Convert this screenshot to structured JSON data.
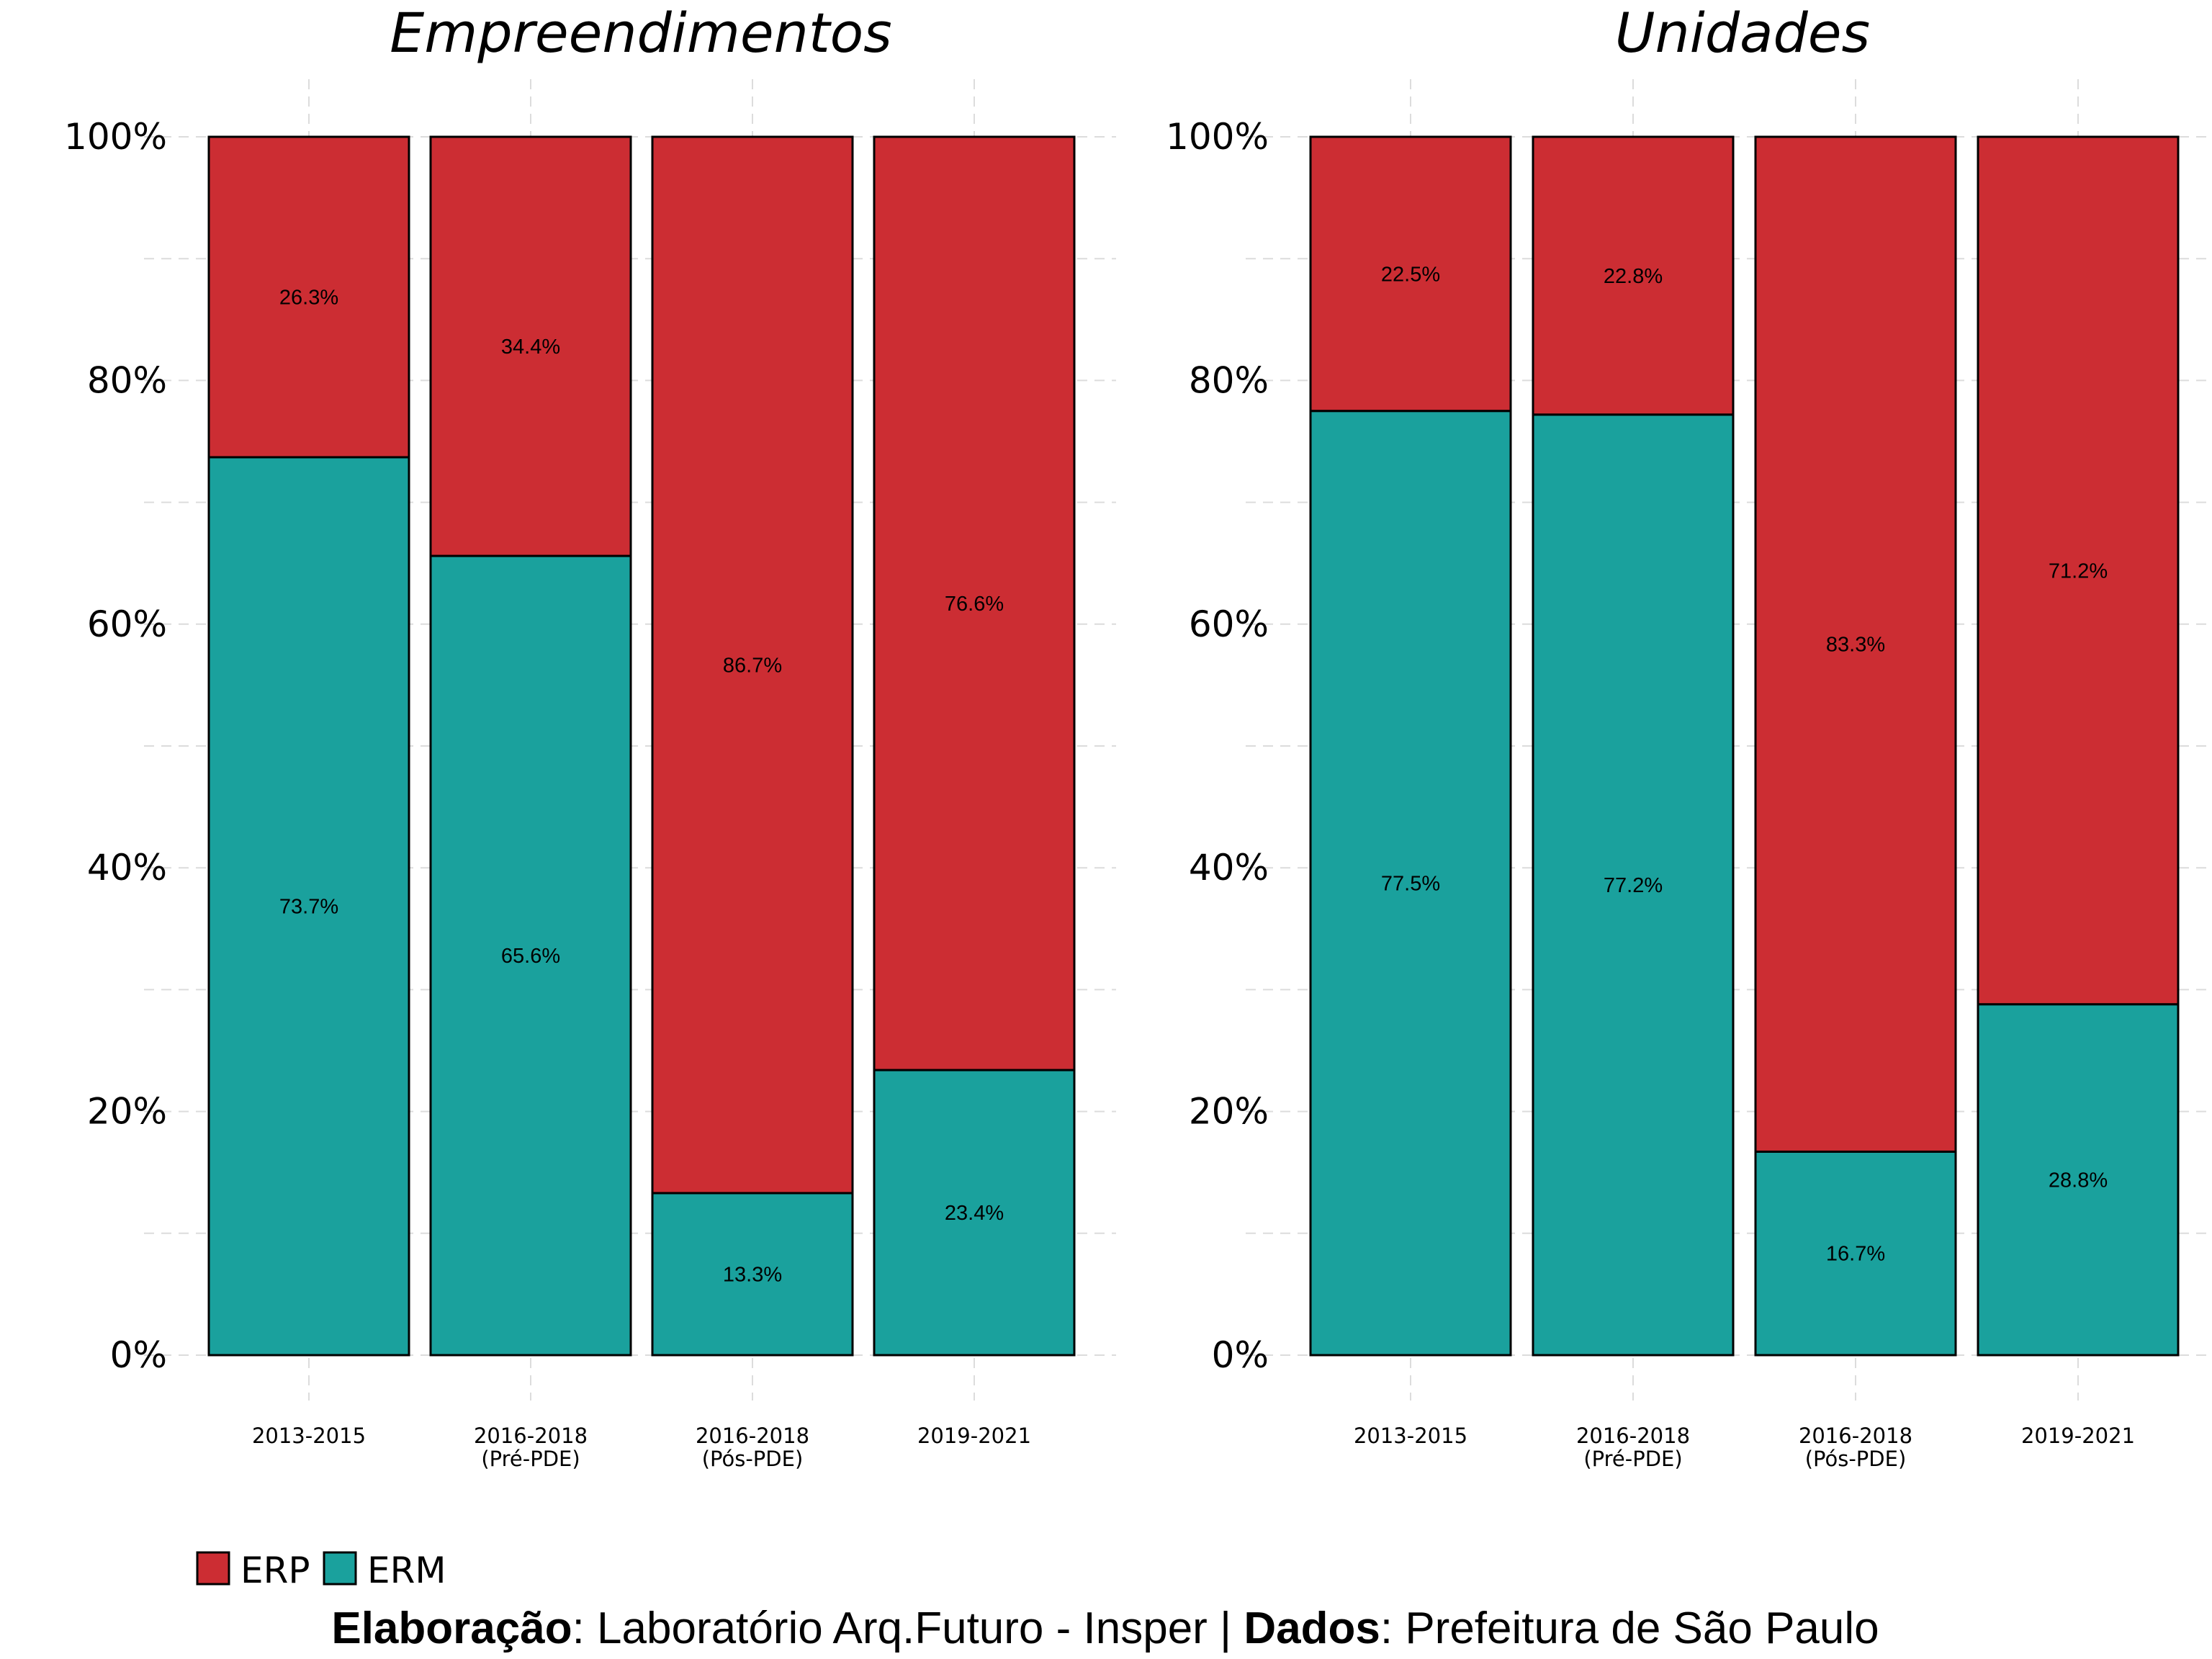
{
  "chart_data": [
    {
      "type": "bar",
      "stacked": true,
      "title": "Empreendimentos",
      "categories": [
        "2013-2015",
        "2016-2018\n(Pré-PDE)",
        "2016-2018\n(Pós-PDE)",
        "2019-2021"
      ],
      "series": [
        {
          "name": "ERM",
          "values": [
            73.7,
            65.6,
            13.3,
            23.4
          ],
          "labels": [
            "73.7%",
            "65.6%",
            "13.3%",
            "23.4%"
          ]
        },
        {
          "name": "ERP",
          "values": [
            26.3,
            34.4,
            86.7,
            76.6
          ],
          "labels": [
            "26.3%",
            "34.4%",
            "86.7%",
            "76.6%"
          ]
        }
      ],
      "yticks": [
        "0%",
        "20%",
        "40%",
        "60%",
        "80%",
        "100%"
      ],
      "ylim": [
        0,
        100
      ],
      "grid": true
    },
    {
      "type": "bar",
      "stacked": true,
      "title": "Unidades",
      "categories": [
        "2013-2015",
        "2016-2018\n(Pré-PDE)",
        "2016-2018\n(Pós-PDE)",
        "2019-2021"
      ],
      "series": [
        {
          "name": "ERM",
          "values": [
            77.5,
            77.2,
            16.7,
            28.8
          ],
          "labels": [
            "77.5%",
            "77.2%",
            "16.7%",
            "28.8%"
          ]
        },
        {
          "name": "ERP",
          "values": [
            22.5,
            22.8,
            83.3,
            71.2
          ],
          "labels": [
            "22.5%",
            "22.8%",
            "83.3%",
            "71.2%"
          ]
        }
      ],
      "yticks": [
        "0%",
        "20%",
        "40%",
        "60%",
        "80%",
        "100%"
      ],
      "ylim": [
        0,
        100
      ],
      "grid": true
    }
  ],
  "legend": {
    "position": "bottom-left",
    "items": [
      {
        "name": "ERP",
        "color": "#cc2d33"
      },
      {
        "name": "ERM",
        "color": "#1aa19d"
      }
    ]
  },
  "colors": {
    "ERP": "#cc2d33",
    "ERM": "#1aa19d"
  },
  "caption": {
    "label1": "Elaboração",
    "text1": ": Laboratório Arq.Futuro - Insper | ",
    "label2": "Dados",
    "text2": ": Prefeitura de São Paulo"
  }
}
